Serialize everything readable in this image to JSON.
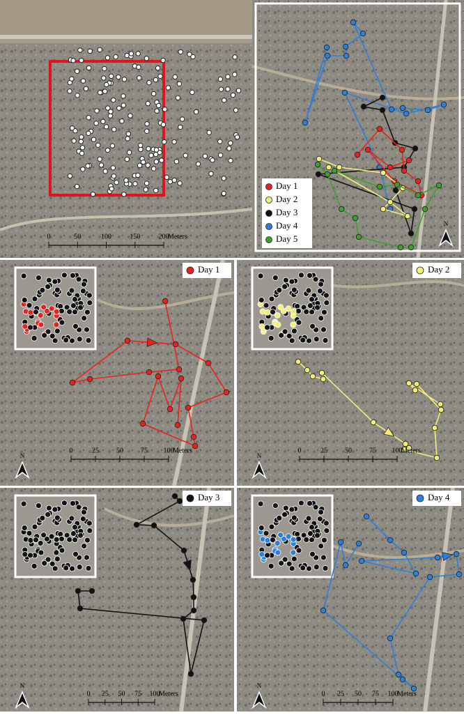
{
  "north_label": "N",
  "overview": {
    "scale_labels": [
      "0",
      "50",
      "100",
      "150",
      "200"
    ],
    "unit": "Meters"
  },
  "inset_legend": [
    {
      "label": "Day 1",
      "color": "#e8231f"
    },
    {
      "label": "Day 2",
      "color": "#f4ef7a"
    },
    {
      "label": "Day 3",
      "color": "#111111"
    },
    {
      "label": "Day 4",
      "color": "#2f7fd6"
    },
    {
      "label": "Day 5",
      "color": "#3e9e2e"
    }
  ],
  "panels": [
    {
      "label": "Day 1",
      "color": "#e8231f",
      "scale_labels": [
        "0",
        "25",
        "50",
        "75",
        "100"
      ],
      "unit": "Meters"
    },
    {
      "label": "Day 2",
      "color": "#f4ef7a",
      "scale_labels": [
        "0",
        "25",
        "50",
        "75",
        "100"
      ],
      "unit": "Meters"
    },
    {
      "label": "Day 3",
      "color": "#111111",
      "scale_labels": [
        "0",
        "25",
        "50",
        "75",
        "100"
      ],
      "unit": "Meters"
    },
    {
      "label": "Day 4",
      "color": "#2f7fd6",
      "scale_labels": [
        "0",
        "25",
        "50",
        "75",
        "100"
      ],
      "unit": "Meters"
    }
  ]
}
